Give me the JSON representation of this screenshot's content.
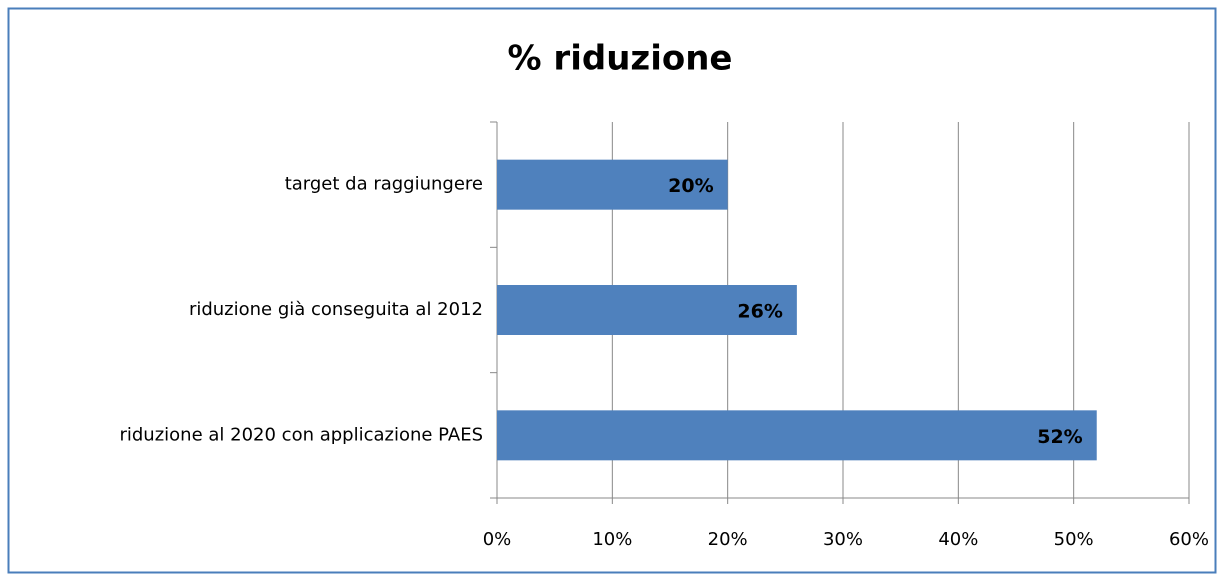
{
  "chart_data": {
    "type": "bar",
    "orientation": "horizontal",
    "title": "% riduzione",
    "categories": [
      "target da raggiungere",
      "riduzione già conseguita al 2012",
      "riduzione al 2020 con applicazione PAES"
    ],
    "values": [
      20,
      26,
      52
    ],
    "value_labels": [
      "20%",
      "26%",
      "52%"
    ],
    "color": "#4f81bd",
    "xlim": [
      0,
      60
    ],
    "xticks": [
      {
        "value": 0,
        "label": "0%"
      },
      {
        "value": 10,
        "label": "10%"
      },
      {
        "value": 20,
        "label": "20%"
      },
      {
        "value": 30,
        "label": "30%"
      },
      {
        "value": 40,
        "label": "40%"
      },
      {
        "value": 50,
        "label": "50%"
      },
      {
        "value": 60,
        "label": "60%"
      }
    ],
    "grid": true
  }
}
